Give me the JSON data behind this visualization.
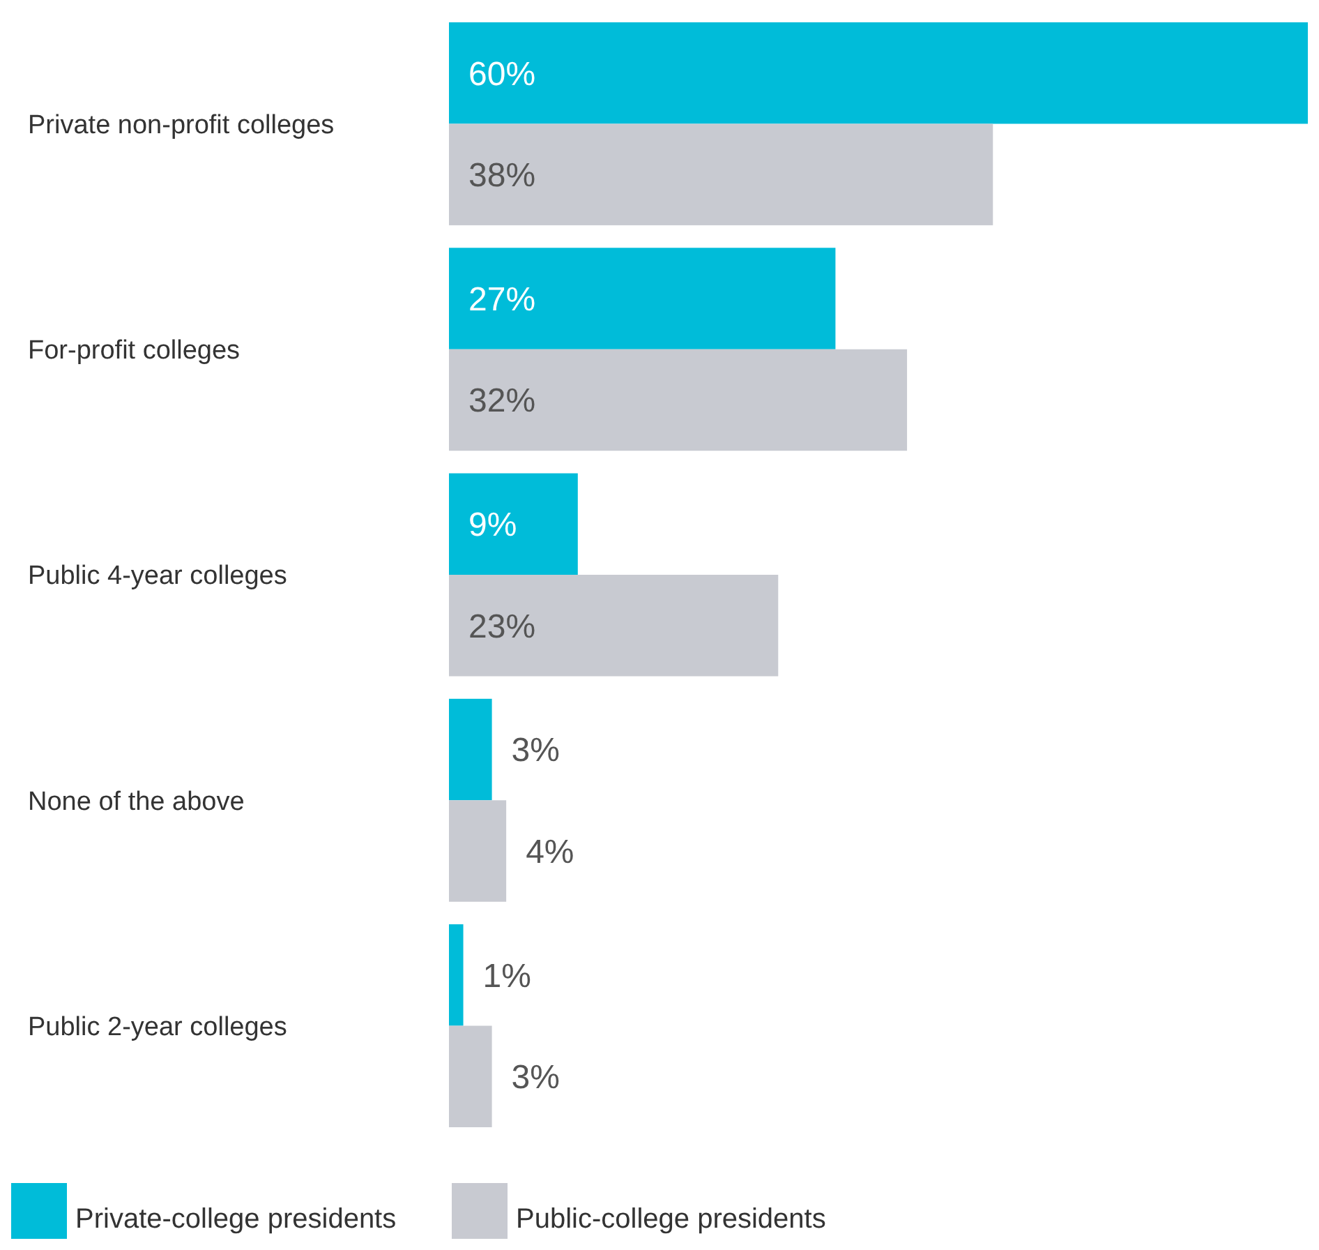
{
  "chart_data": {
    "type": "bar",
    "orientation": "horizontal",
    "categories": [
      "Private non-profit colleges",
      "For-profit colleges",
      "Public 4-year colleges",
      "None of the above",
      "Public 2-year colleges"
    ],
    "series": [
      {
        "name": "Private-college presidents",
        "color": "#00bcd9",
        "values": [
          60,
          27,
          9,
          3,
          1
        ],
        "value_labels": [
          "60%",
          "27%",
          "9%",
          "3%",
          "1%"
        ]
      },
      {
        "name": "Public-college presidents",
        "color": "#c8cad1",
        "values": [
          38,
          32,
          23,
          4,
          3
        ],
        "value_labels": [
          "38%",
          "32%",
          "23%",
          "4%",
          "3%"
        ]
      }
    ],
    "relative": false,
    "legend": "bottom"
  }
}
